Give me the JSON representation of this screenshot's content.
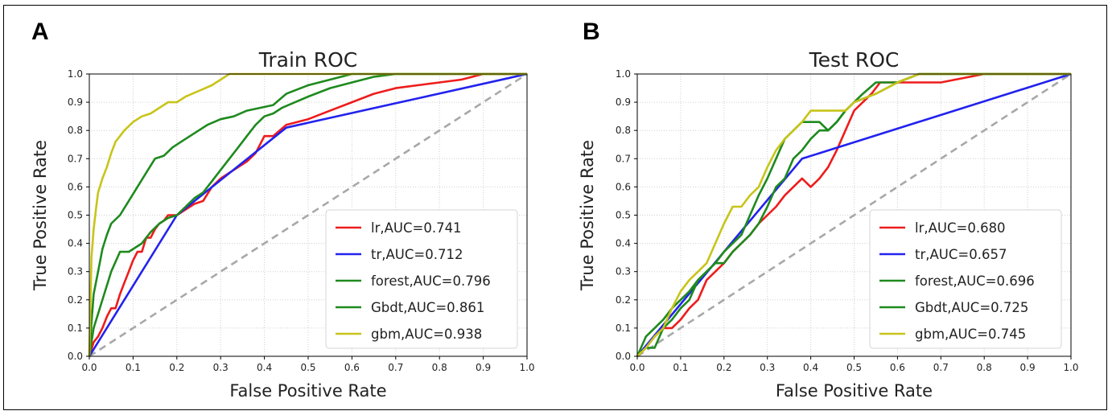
{
  "chart_data": [
    {
      "panel_label": "A",
      "type": "line",
      "title": "Train ROC",
      "xlabel": "False Positive Rate",
      "ylabel": "True Positive Rate",
      "xlim": [
        0,
        1
      ],
      "ylim": [
        0,
        1
      ],
      "xticks": [
        "0.0",
        "0.1",
        "0.2",
        "0.3",
        "0.4",
        "0.5",
        "0.6",
        "0.7",
        "0.8",
        "0.9",
        "1.0"
      ],
      "yticks": [
        "0.0",
        "0.1",
        "0.2",
        "0.3",
        "0.4",
        "0.5",
        "0.6",
        "0.7",
        "0.8",
        "0.9",
        "1.0"
      ],
      "grid": true,
      "legend_position": "lower-right",
      "diagonal": {
        "x": [
          0,
          1
        ],
        "y": [
          0,
          1
        ],
        "color": "#a8a8a8",
        "style": "dashed"
      },
      "series": [
        {
          "name": "lr,AUC=0.741",
          "color": "#ee1c1c",
          "x": [
            0,
            0.01,
            0.02,
            0.03,
            0.04,
            0.05,
            0.06,
            0.07,
            0.08,
            0.09,
            0.1,
            0.11,
            0.12,
            0.13,
            0.14,
            0.15,
            0.16,
            0.17,
            0.18,
            0.2,
            0.22,
            0.24,
            0.26,
            0.28,
            0.3,
            0.32,
            0.34,
            0.36,
            0.38,
            0.4,
            0.42,
            0.45,
            0.5,
            0.55,
            0.6,
            0.65,
            0.7,
            0.75,
            0.8,
            0.85,
            0.9,
            1.0
          ],
          "y": [
            0,
            0.05,
            0.07,
            0.1,
            0.14,
            0.17,
            0.17,
            0.22,
            0.26,
            0.3,
            0.34,
            0.37,
            0.37,
            0.42,
            0.42,
            0.45,
            0.47,
            0.48,
            0.5,
            0.5,
            0.52,
            0.54,
            0.55,
            0.6,
            0.63,
            0.65,
            0.67,
            0.69,
            0.72,
            0.78,
            0.78,
            0.82,
            0.84,
            0.87,
            0.9,
            0.93,
            0.95,
            0.96,
            0.97,
            0.98,
            1.0,
            1.0
          ]
        },
        {
          "name": "tr,AUC=0.712",
          "color": "#2222ee",
          "x": [
            0,
            0.2,
            0.45,
            1.0
          ],
          "y": [
            0,
            0.5,
            0.81,
            1.0
          ]
        },
        {
          "name": "forest,AUC=0.796",
          "color": "#1e8a1e",
          "x": [
            0,
            0.01,
            0.03,
            0.05,
            0.07,
            0.09,
            0.12,
            0.14,
            0.16,
            0.18,
            0.2,
            0.22,
            0.24,
            0.26,
            0.28,
            0.3,
            0.32,
            0.34,
            0.36,
            0.38,
            0.4,
            0.42,
            0.44,
            0.47,
            0.5,
            0.55,
            0.6,
            0.65,
            0.7,
            0.8,
            1.0
          ],
          "y": [
            0,
            0.1,
            0.2,
            0.3,
            0.37,
            0.37,
            0.4,
            0.44,
            0.47,
            0.49,
            0.5,
            0.53,
            0.56,
            0.58,
            0.62,
            0.66,
            0.7,
            0.74,
            0.78,
            0.82,
            0.85,
            0.86,
            0.88,
            0.9,
            0.92,
            0.95,
            0.97,
            0.99,
            1.0,
            1.0,
            1.0
          ]
        },
        {
          "name": "Gbdt,AUC=0.861",
          "color": "#1e8a1e",
          "x": [
            0,
            0.005,
            0.01,
            0.02,
            0.03,
            0.04,
            0.05,
            0.07,
            0.09,
            0.11,
            0.13,
            0.15,
            0.17,
            0.19,
            0.21,
            0.23,
            0.25,
            0.27,
            0.3,
            0.33,
            0.36,
            0.39,
            0.42,
            0.45,
            0.5,
            0.55,
            0.6,
            0.7,
            1.0
          ],
          "y": [
            0,
            0.12,
            0.22,
            0.3,
            0.38,
            0.43,
            0.47,
            0.5,
            0.55,
            0.6,
            0.65,
            0.7,
            0.71,
            0.74,
            0.76,
            0.78,
            0.8,
            0.82,
            0.84,
            0.85,
            0.87,
            0.88,
            0.89,
            0.93,
            0.96,
            0.98,
            1.0,
            1.0,
            1.0
          ]
        },
        {
          "name": "gbm,AUC=0.938",
          "color": "#c8c41a",
          "x": [
            0,
            0.005,
            0.01,
            0.015,
            0.02,
            0.03,
            0.04,
            0.05,
            0.06,
            0.07,
            0.08,
            0.1,
            0.12,
            0.14,
            0.16,
            0.18,
            0.2,
            0.22,
            0.25,
            0.28,
            0.3,
            0.32,
            0.35,
            0.42,
            0.5,
            1.0
          ],
          "y": [
            0,
            0.35,
            0.45,
            0.52,
            0.58,
            0.63,
            0.67,
            0.72,
            0.76,
            0.78,
            0.8,
            0.83,
            0.85,
            0.86,
            0.88,
            0.9,
            0.9,
            0.92,
            0.94,
            0.96,
            0.98,
            1.0,
            1.0,
            1.0,
            1.0,
            1.0
          ]
        }
      ]
    },
    {
      "panel_label": "B",
      "type": "line",
      "title": "Test ROC",
      "xlabel": "False Positive Rate",
      "ylabel": "True Positive Rate",
      "xlim": [
        0,
        1
      ],
      "ylim": [
        0,
        1
      ],
      "xticks": [
        "0.0",
        "0.1",
        "0.2",
        "0.3",
        "0.4",
        "0.5",
        "0.6",
        "0.7",
        "0.8",
        "0.9",
        "1.0"
      ],
      "yticks": [
        "0.0",
        "0.1",
        "0.2",
        "0.3",
        "0.4",
        "0.5",
        "0.6",
        "0.7",
        "0.8",
        "0.9",
        "1.0"
      ],
      "grid": true,
      "legend_position": "lower-right",
      "diagonal": {
        "x": [
          0,
          1
        ],
        "y": [
          0,
          1
        ],
        "color": "#a8a8a8",
        "style": "dashed"
      },
      "series": [
        {
          "name": "lr,AUC=0.680",
          "color": "#ee1c1c",
          "x": [
            0,
            0.02,
            0.04,
            0.06,
            0.08,
            0.1,
            0.12,
            0.14,
            0.16,
            0.18,
            0.2,
            0.22,
            0.24,
            0.26,
            0.28,
            0.3,
            0.32,
            0.34,
            0.36,
            0.38,
            0.4,
            0.42,
            0.44,
            0.46,
            0.48,
            0.5,
            0.52,
            0.54,
            0.56,
            0.6,
            0.65,
            0.7,
            0.8,
            1.0
          ],
          "y": [
            0,
            0.03,
            0.07,
            0.1,
            0.1,
            0.13,
            0.17,
            0.2,
            0.27,
            0.3,
            0.33,
            0.37,
            0.4,
            0.43,
            0.47,
            0.5,
            0.53,
            0.57,
            0.6,
            0.63,
            0.6,
            0.63,
            0.67,
            0.73,
            0.8,
            0.87,
            0.9,
            0.93,
            0.97,
            0.97,
            0.97,
            0.97,
            1.0,
            1.0
          ]
        },
        {
          "name": "tr,AUC=0.657",
          "color": "#2222ee",
          "x": [
            0,
            0.2,
            0.38,
            1.0
          ],
          "y": [
            0,
            0.37,
            0.7,
            1.0
          ]
        },
        {
          "name": "forest,AUC=0.696",
          "color": "#1e8a1e",
          "x": [
            0,
            0.02,
            0.04,
            0.06,
            0.08,
            0.1,
            0.12,
            0.14,
            0.16,
            0.18,
            0.2,
            0.22,
            0.24,
            0.26,
            0.28,
            0.3,
            0.32,
            0.34,
            0.36,
            0.38,
            0.4,
            0.42,
            0.44,
            0.46,
            0.48,
            0.5,
            0.52,
            0.55,
            0.6,
            0.65,
            0.8,
            1.0
          ],
          "y": [
            0,
            0.03,
            0.03,
            0.1,
            0.13,
            0.17,
            0.2,
            0.27,
            0.3,
            0.33,
            0.33,
            0.37,
            0.4,
            0.43,
            0.47,
            0.53,
            0.6,
            0.63,
            0.7,
            0.73,
            0.77,
            0.8,
            0.8,
            0.83,
            0.87,
            0.9,
            0.93,
            0.97,
            0.97,
            1.0,
            1.0,
            1.0
          ]
        },
        {
          "name": "Gbdt,AUC=0.725",
          "color": "#1e8a1e",
          "x": [
            0,
            0.02,
            0.04,
            0.06,
            0.08,
            0.1,
            0.12,
            0.14,
            0.16,
            0.18,
            0.2,
            0.22,
            0.24,
            0.26,
            0.28,
            0.3,
            0.32,
            0.34,
            0.36,
            0.38,
            0.4,
            0.42,
            0.44,
            0.46,
            0.48,
            0.5,
            0.55,
            0.6,
            0.65,
            0.8,
            1.0
          ],
          "y": [
            0,
            0.07,
            0.1,
            0.13,
            0.17,
            0.2,
            0.23,
            0.27,
            0.3,
            0.33,
            0.37,
            0.4,
            0.43,
            0.5,
            0.57,
            0.63,
            0.7,
            0.77,
            0.8,
            0.83,
            0.83,
            0.83,
            0.8,
            0.83,
            0.87,
            0.9,
            0.93,
            0.97,
            1.0,
            1.0,
            1.0
          ]
        },
        {
          "name": "gbm,AUC=0.745",
          "color": "#c8c41a",
          "x": [
            0,
            0.02,
            0.04,
            0.06,
            0.08,
            0.1,
            0.12,
            0.14,
            0.16,
            0.18,
            0.2,
            0.22,
            0.24,
            0.26,
            0.28,
            0.3,
            0.32,
            0.34,
            0.36,
            0.38,
            0.4,
            0.42,
            0.44,
            0.46,
            0.48,
            0.5,
            0.55,
            0.6,
            0.65,
            1.0
          ],
          "y": [
            0,
            0.03,
            0.07,
            0.1,
            0.17,
            0.23,
            0.27,
            0.3,
            0.33,
            0.4,
            0.47,
            0.53,
            0.53,
            0.57,
            0.6,
            0.67,
            0.73,
            0.77,
            0.8,
            0.83,
            0.87,
            0.87,
            0.87,
            0.87,
            0.87,
            0.9,
            0.93,
            0.97,
            1.0,
            1.0
          ]
        }
      ]
    }
  ]
}
